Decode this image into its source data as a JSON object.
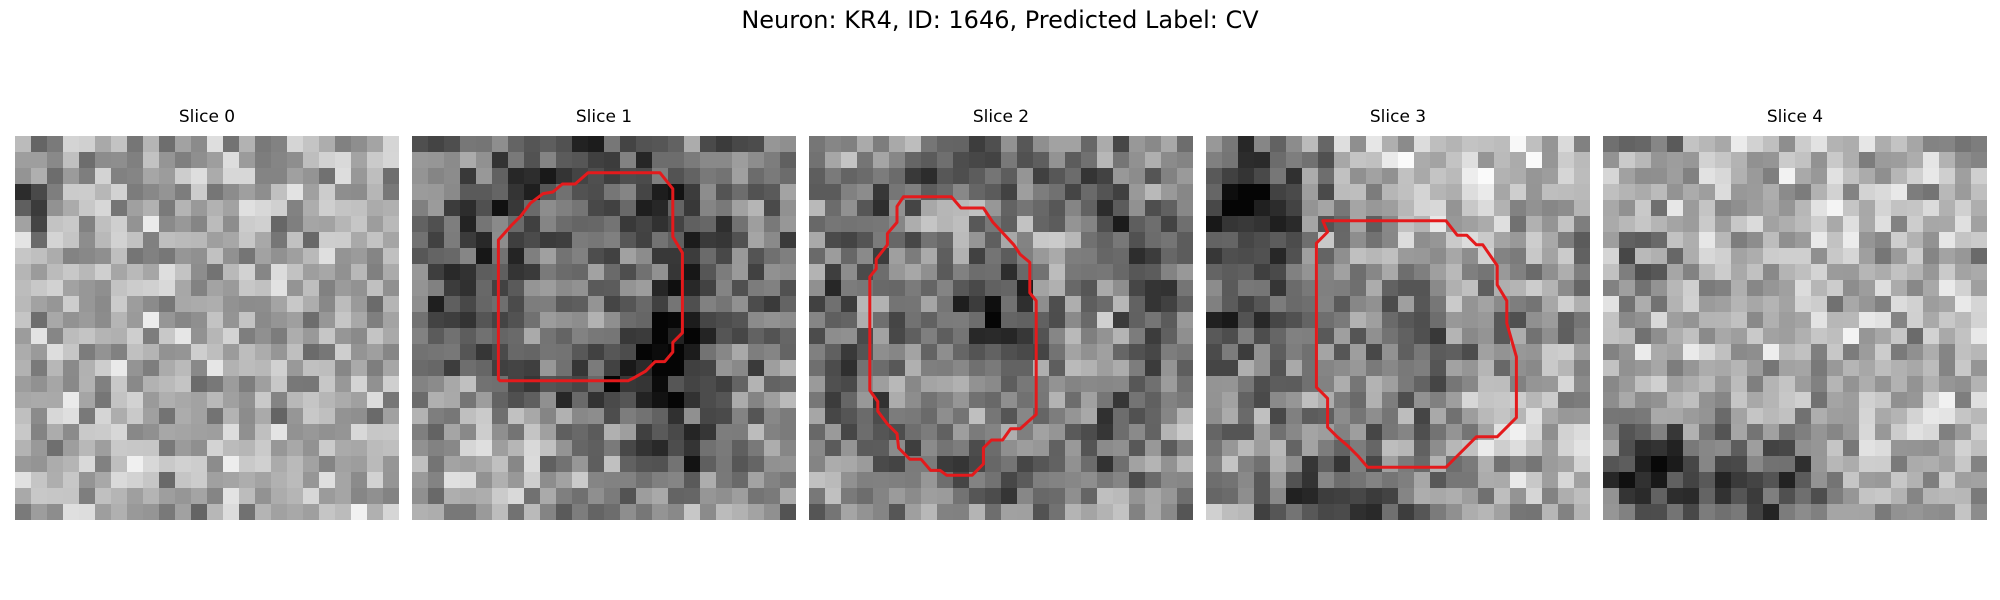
{
  "figure_title": "Neuron: KR4, ID: 1646, Predicted Label: CV",
  "slices": [
    {
      "title": "Slice 0",
      "has_contour": false,
      "seed": 11,
      "base": 0.67,
      "feature": "light-noise"
    },
    {
      "title": "Slice 1",
      "has_contour": true,
      "seed": 23,
      "base": 0.48,
      "feature": "dark-ring-upper"
    },
    {
      "title": "Slice 2",
      "has_contour": true,
      "seed": 37,
      "base": 0.55,
      "feature": "dark-ring-center"
    },
    {
      "title": "Slice 3",
      "has_contour": true,
      "seed": 41,
      "base": 0.55,
      "feature": "dark-left-light-right"
    },
    {
      "title": "Slice 4",
      "has_contour": false,
      "seed": 53,
      "base": 0.7,
      "feature": "dark-lower-left"
    }
  ],
  "colors": {
    "contour": "#e41a1c",
    "background": "#ffffff"
  }
}
